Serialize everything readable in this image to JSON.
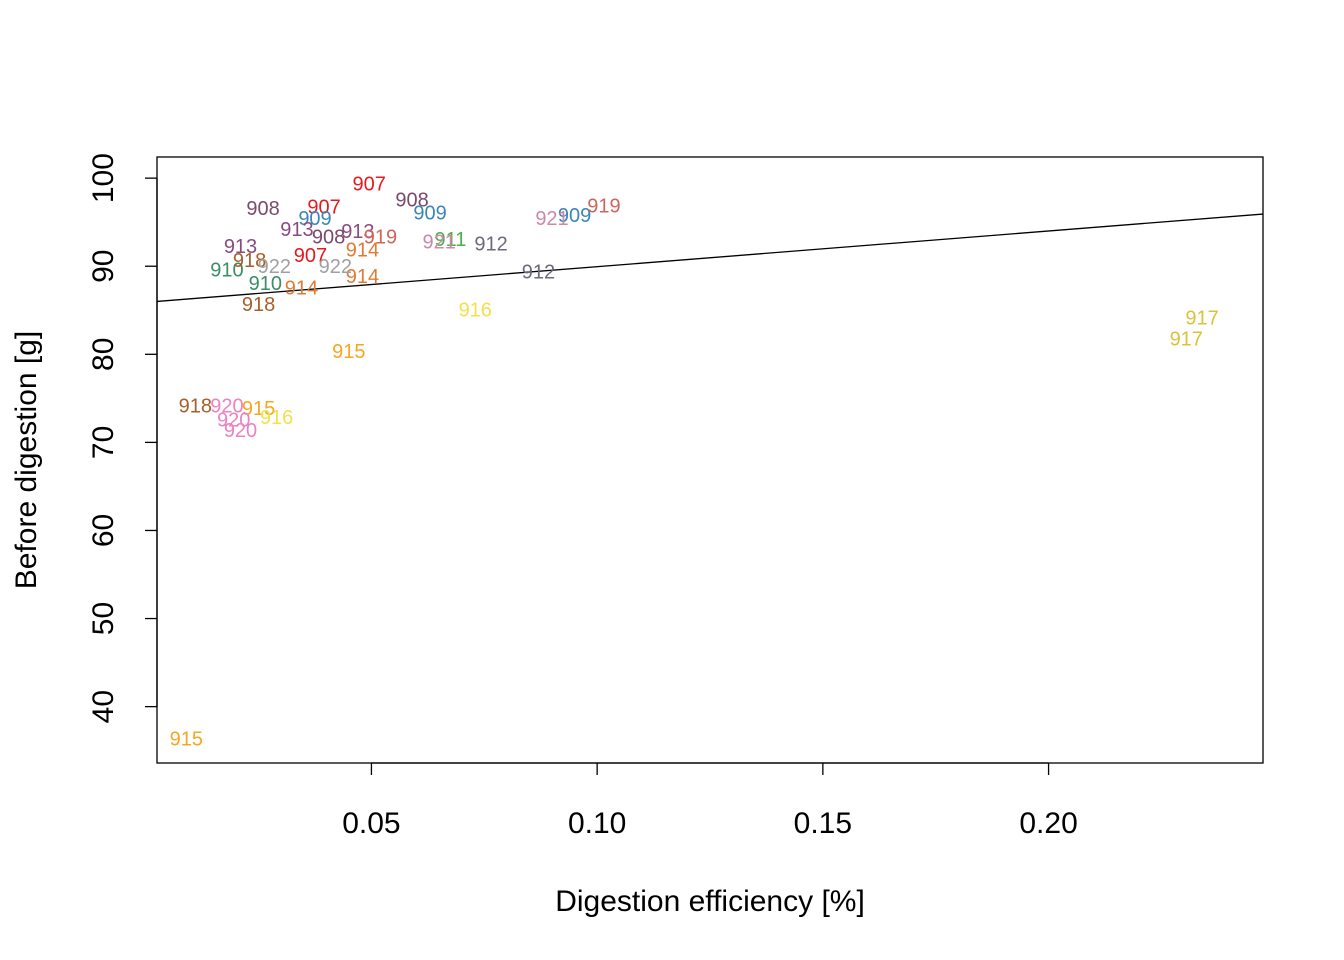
{
  "chart_data": {
    "type": "scatter",
    "title": "",
    "xlabel": "Digestion efficiency [%]",
    "ylabel": "Before digestion [g]",
    "xlim": [
      0.0025,
      0.2475
    ],
    "ylim": [
      33.6,
      102.4
    ],
    "x_ticks": [
      0.05,
      0.1,
      0.15,
      0.2
    ],
    "x_tick_labels": [
      "0.05",
      "0.10",
      "0.15",
      "0.20"
    ],
    "y_ticks": [
      40,
      50,
      60,
      70,
      80,
      90,
      100
    ],
    "y_tick_labels": [
      "40",
      "50",
      "60",
      "70",
      "80",
      "90",
      "100"
    ],
    "grid": false,
    "legend": "none",
    "marker": "text-label",
    "regression_line": {
      "intercept": 85.9,
      "slope": 40.5
    },
    "colors": {
      "907": "#e41a1c",
      "908": "#7a4a6b",
      "909": "#3a86b8",
      "910": "#3c8d68",
      "911": "#4daf4a",
      "912": "#6b6b7b",
      "913": "#8a4a82",
      "914": "#e07b33",
      "915": "#f5a623",
      "916": "#f4e04a",
      "917": "#dcc238",
      "918": "#a65f2a",
      "919": "#d0645a",
      "920": "#ee82c0",
      "921": "#cc88aa",
      "922": "#a0a0a0"
    },
    "points": [
      {
        "label": "907",
        "x": 0.0495,
        "y": 99.4
      },
      {
        "label": "907",
        "x": 0.0395,
        "y": 96.8
      },
      {
        "label": "907",
        "x": 0.0365,
        "y": 91.3
      },
      {
        "label": "908",
        "x": 0.026,
        "y": 96.6
      },
      {
        "label": "908",
        "x": 0.059,
        "y": 97.6
      },
      {
        "label": "908",
        "x": 0.0405,
        "y": 93.4
      },
      {
        "label": "909",
        "x": 0.0375,
        "y": 95.5
      },
      {
        "label": "909",
        "x": 0.063,
        "y": 96.1
      },
      {
        "label": "909",
        "x": 0.095,
        "y": 95.8
      },
      {
        "label": "910",
        "x": 0.018,
        "y": 89.6
      },
      {
        "label": "910",
        "x": 0.0265,
        "y": 88.1
      },
      {
        "label": "911",
        "x": 0.0675,
        "y": 93.1
      },
      {
        "label": "912",
        "x": 0.0765,
        "y": 92.6
      },
      {
        "label": "912",
        "x": 0.087,
        "y": 89.4
      },
      {
        "label": "913",
        "x": 0.021,
        "y": 92.3
      },
      {
        "label": "913",
        "x": 0.0335,
        "y": 94.2
      },
      {
        "label": "913",
        "x": 0.047,
        "y": 94.0
      },
      {
        "label": "914",
        "x": 0.048,
        "y": 91.9
      },
      {
        "label": "914",
        "x": 0.048,
        "y": 88.9
      },
      {
        "label": "914",
        "x": 0.0345,
        "y": 87.6
      },
      {
        "label": "915",
        "x": 0.045,
        "y": 80.4
      },
      {
        "label": "915",
        "x": 0.025,
        "y": 73.9
      },
      {
        "label": "915",
        "x": 0.009,
        "y": 36.4
      },
      {
        "label": "916",
        "x": 0.073,
        "y": 85.1
      },
      {
        "label": "916",
        "x": 0.029,
        "y": 72.9
      },
      {
        "label": "917",
        "x": 0.234,
        "y": 84.2
      },
      {
        "label": "917",
        "x": 0.2305,
        "y": 81.8
      },
      {
        "label": "918",
        "x": 0.023,
        "y": 90.7
      },
      {
        "label": "918",
        "x": 0.025,
        "y": 85.7
      },
      {
        "label": "918",
        "x": 0.011,
        "y": 74.2
      },
      {
        "label": "919",
        "x": 0.1015,
        "y": 96.9
      },
      {
        "label": "919",
        "x": 0.052,
        "y": 93.4
      },
      {
        "label": "920",
        "x": 0.018,
        "y": 74.2
      },
      {
        "label": "920",
        "x": 0.0195,
        "y": 72.6
      },
      {
        "label": "920",
        "x": 0.021,
        "y": 71.4
      },
      {
        "label": "921",
        "x": 0.09,
        "y": 95.5
      },
      {
        "label": "921",
        "x": 0.065,
        "y": 92.8
      },
      {
        "label": "922",
        "x": 0.0285,
        "y": 90.0
      },
      {
        "label": "922",
        "x": 0.042,
        "y": 90.0
      }
    ]
  }
}
